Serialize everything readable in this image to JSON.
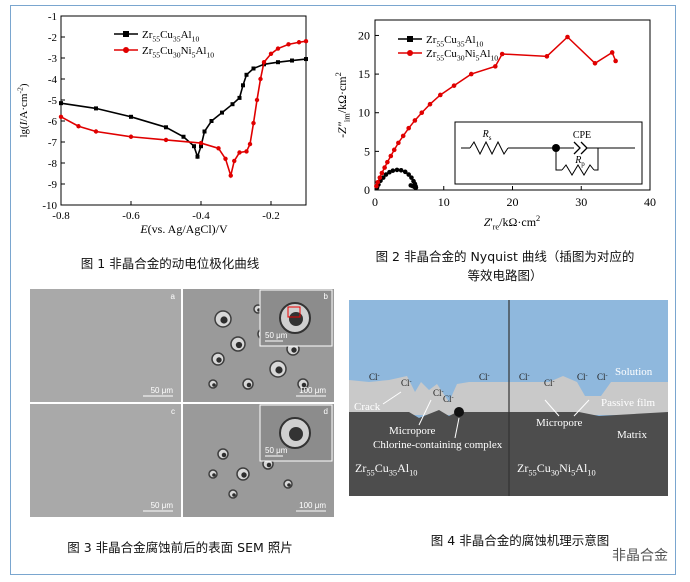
{
  "figure1": {
    "caption": "图 1  非晶合金的动电位极化曲线",
    "chart_data": {
      "type": "line",
      "xlabel_main": "E",
      "xlabel_rest": "(vs. Ag/AgCl)/V",
      "ylabel_pre": "lg(",
      "ylabel_i": "I",
      "ylabel_post": "/A·cm",
      "ylabel_sup": "-2",
      "ylabel_close": ")",
      "xlim": [
        -0.8,
        -0.1
      ],
      "ylim": [
        -10,
        -1
      ],
      "xticks": [
        "-0.8",
        "-0.6",
        "-0.4",
        "-0.2"
      ],
      "yticks": [
        "-1",
        "-2",
        "-3",
        "-4",
        "-5",
        "-6",
        "-7",
        "-8",
        "-9",
        "-10"
      ],
      "series": [
        {
          "name": "Zr55Cu35Al10",
          "legend": [
            {
              "t": "Zr"
            },
            {
              "t": "55",
              "sub": true
            },
            {
              "t": "Cu"
            },
            {
              "t": "35",
              "sub": true
            },
            {
              "t": "Al"
            },
            {
              "t": "10",
              "sub": true
            }
          ],
          "color": "#000000",
          "x": [
            -0.8,
            -0.7,
            -0.6,
            -0.5,
            -0.45,
            -0.42,
            -0.41,
            -0.4,
            -0.39,
            -0.37,
            -0.34,
            -0.31,
            -0.29,
            -0.28,
            -0.27,
            -0.25,
            -0.22,
            -0.18,
            -0.14,
            -0.1
          ],
          "y": [
            -5.15,
            -5.4,
            -5.8,
            -6.3,
            -6.75,
            -7.2,
            -7.7,
            -7.2,
            -6.5,
            -6.0,
            -5.6,
            -5.2,
            -4.9,
            -4.3,
            -3.8,
            -3.5,
            -3.3,
            -3.2,
            -3.12,
            -3.05
          ]
        },
        {
          "name": "Zr55Cu30Ni5Al10",
          "legend": [
            {
              "t": "Zr"
            },
            {
              "t": "55",
              "sub": true
            },
            {
              "t": "Cu"
            },
            {
              "t": "30",
              "sub": true
            },
            {
              "t": "Ni"
            },
            {
              "t": "5",
              "sub": true
            },
            {
              "t": "Al"
            },
            {
              "t": "10",
              "sub": true
            }
          ],
          "color": "#e00000",
          "x": [
            -0.8,
            -0.75,
            -0.7,
            -0.6,
            -0.5,
            -0.4,
            -0.35,
            -0.33,
            -0.315,
            -0.305,
            -0.29,
            -0.27,
            -0.26,
            -0.25,
            -0.24,
            -0.23,
            -0.22,
            -0.2,
            -0.18,
            -0.15,
            -0.12,
            -0.1
          ],
          "y": [
            -5.8,
            -6.25,
            -6.5,
            -6.75,
            -6.9,
            -7.05,
            -7.3,
            -7.8,
            -8.6,
            -7.9,
            -7.5,
            -7.45,
            -7.1,
            -6.1,
            -5.0,
            -4.0,
            -3.2,
            -2.8,
            -2.55,
            -2.35,
            -2.25,
            -2.2
          ]
        }
      ]
    }
  },
  "figure2": {
    "caption_line1": "图 2  非晶合金的 Nyquist 曲线（插图为对应的",
    "caption_line2": "等效电路图）",
    "chart_data": {
      "type": "scatter",
      "xlim": [
        0,
        40
      ],
      "ylim": [
        0,
        22
      ],
      "xticks": [
        "0",
        "10",
        "20",
        "30",
        "40"
      ],
      "yticks": [
        "0",
        "5",
        "10",
        "15",
        "20"
      ],
      "xlabel_pre": "Z",
      "xlabel_sub": "re",
      "xlabel_post": "/kΩ·cm",
      "xlabel_sup": "2",
      "ylabel_pre": "-Z\"",
      "ylabel_sub": "im",
      "ylabel_post": "/kΩ·cm",
      "ylabel_sup": "2",
      "series": [
        {
          "name": "Zr55Cu35Al10",
          "legend": [
            {
              "t": "Zr"
            },
            {
              "t": "55",
              "sub": true
            },
            {
              "t": "Cu"
            },
            {
              "t": "35",
              "sub": true
            },
            {
              "t": "Al"
            },
            {
              "t": "10",
              "sub": true
            }
          ],
          "color": "#000000",
          "x": [
            0.3,
            0.5,
            0.8,
            1.2,
            1.6,
            2.1,
            2.6,
            3.2,
            3.8,
            4.4,
            4.9,
            5.3,
            5.6,
            5.8,
            5.9,
            5.95,
            5.8,
            5.5,
            5.2
          ],
          "y": [
            0.3,
            0.7,
            1.2,
            1.6,
            2.0,
            2.3,
            2.5,
            2.6,
            2.55,
            2.35,
            2.0,
            1.6,
            1.15,
            0.8,
            0.5,
            0.3,
            0.35,
            0.5,
            0.6
          ]
        },
        {
          "name": "Zr55Cu30Ni5Al10",
          "legend": [
            {
              "t": "Zr"
            },
            {
              "t": "55",
              "sub": true
            },
            {
              "t": "Cu"
            },
            {
              "t": "30",
              "sub": true
            },
            {
              "t": "Ni"
            },
            {
              "t": "5",
              "sub": true
            },
            {
              "t": "Al"
            },
            {
              "t": "10",
              "sub": true
            }
          ],
          "color": "#e00000",
          "x": [
            0.2,
            0.4,
            0.7,
            1.0,
            1.4,
            1.8,
            2.3,
            2.8,
            3.4,
            4.1,
            4.9,
            5.8,
            6.8,
            8.0,
            9.5,
            11.5,
            14.0,
            17.5,
            18.5,
            25,
            28,
            32,
            34.5,
            35
          ],
          "y": [
            0.5,
            1.0,
            1.6,
            2.2,
            2.9,
            3.6,
            4.4,
            5.2,
            6.1,
            7.0,
            8.0,
            9.0,
            10.0,
            11.1,
            12.3,
            13.5,
            15.0,
            16.0,
            17.6,
            17.3,
            19.8,
            16.4,
            17.8,
            16.7
          ]
        }
      ]
    },
    "inset": {
      "rs_label": "R",
      "rs_sub": "s",
      "cpe_label": "CPE",
      "rp_label": "R",
      "rp_sub": "p"
    }
  },
  "figure3": {
    "caption": "图 3  非晶合金腐蚀前后的表面 SEM 照片",
    "panels": [
      {
        "letter": "a",
        "scale": "50 μm"
      },
      {
        "letter": "b",
        "scale": "100 μm",
        "inset_scale": "50 μm"
      },
      {
        "letter": "c",
        "scale": "50 μm"
      },
      {
        "letter": "d",
        "scale": "100 μm",
        "inset_scale": "50 μm"
      }
    ]
  },
  "figure4": {
    "caption": "图 4  非晶合金的腐蚀机理示意图",
    "labels": {
      "solution": "Solution",
      "passive_film": "Passive film",
      "matrix": "Matrix",
      "crack": "Crack",
      "micropore_left": "Micropore",
      "complex": "Chlorine-containing complex",
      "micropore_right": "Micropore",
      "chloride": "Cl",
      "chloride_sup": "-"
    },
    "alloy_left": [
      {
        "t": "Zr"
      },
      {
        "t": "55",
        "sub": true
      },
      {
        "t": "Cu"
      },
      {
        "t": "35",
        "sub": true
      },
      {
        "t": "Al"
      },
      {
        "t": "10",
        "sub": true
      }
    ],
    "alloy_right": [
      {
        "t": "Zr"
      },
      {
        "t": "55",
        "sub": true
      },
      {
        "t": "Cu"
      },
      {
        "t": "30",
        "sub": true
      },
      {
        "t": "Ni"
      },
      {
        "t": "5",
        "sub": true
      },
      {
        "t": "Al"
      },
      {
        "t": "10",
        "sub": true
      }
    ],
    "colors": {
      "solution": "#8fb8dd",
      "film": "#c9c9c9",
      "matrix": "#4d4d4d"
    }
  },
  "watermark": "非晶合金"
}
